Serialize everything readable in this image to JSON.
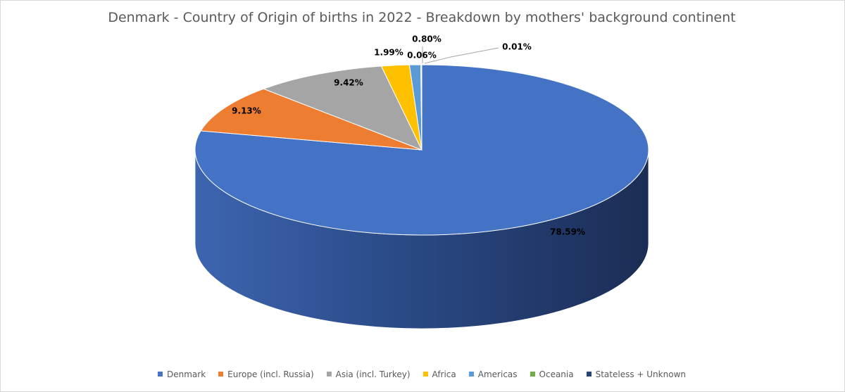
{
  "chart_data": {
    "type": "pie",
    "title": "Denmark - Country of Origin of births in 2022 - Breakdown by mothers' background continent",
    "categories": [
      "Denmark",
      "Europe (incl. Russia)",
      "Asia (incl. Turkey)",
      "Africa",
      "Americas",
      "Oceania",
      "Stateless + Unknown"
    ],
    "values": [
      78.59,
      9.13,
      9.42,
      1.99,
      0.8,
      0.06,
      0.01
    ],
    "value_labels": [
      "78.59%",
      "9.13%",
      "9.42%",
      "1.99%",
      "0.80%",
      "0.06%",
      "0.01%"
    ],
    "colors": [
      "#4472C4",
      "#ED7D31",
      "#A5A5A5",
      "#FFC000",
      "#5B9BD5",
      "#70AD47",
      "#264478"
    ],
    "legend_position": "bottom",
    "style": "3d"
  }
}
